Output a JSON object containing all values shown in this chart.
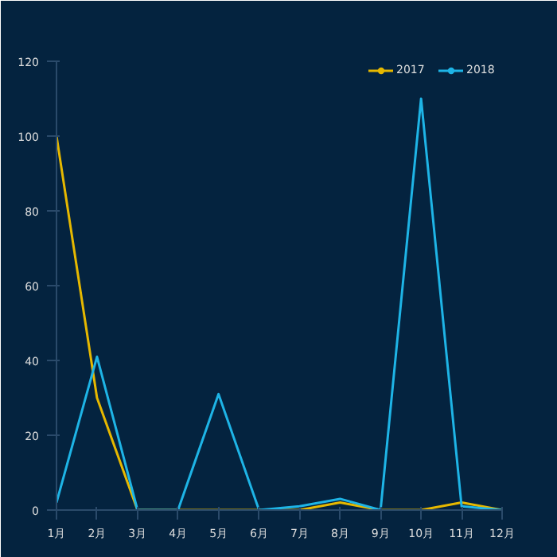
{
  "chart_data": {
    "type": "line",
    "categories": [
      "1月",
      "2月",
      "3月",
      "4月",
      "5月",
      "6月",
      "7月",
      "8月",
      "9月",
      "10月",
      "11月",
      "12月"
    ],
    "series": [
      {
        "name": "2017",
        "color": "#e6b800",
        "values": [
          100,
          30,
          0,
          0,
          0,
          0,
          0,
          2,
          0,
          0,
          2,
          0
        ]
      },
      {
        "name": "2018",
        "color": "#1eb4e6",
        "values": [
          2,
          41,
          0,
          0,
          31,
          0,
          1,
          3,
          0,
          110,
          1,
          0
        ]
      }
    ],
    "ylim": [
      0,
      120
    ],
    "yticks": [
      0,
      20,
      40,
      60,
      80,
      100,
      120
    ],
    "grid": false,
    "legend": "top right",
    "marker": "none",
    "line_style": "solid"
  }
}
